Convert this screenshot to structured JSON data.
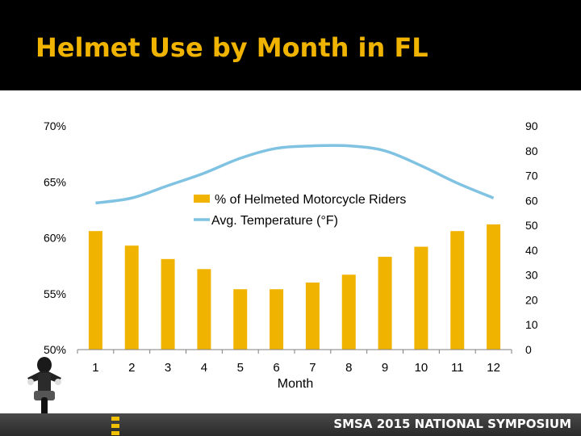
{
  "header": {
    "title": "Helmet Use by Month in FL"
  },
  "footer": {
    "text": "SMSA 2015 NATIONAL SYMPOSIUM"
  },
  "colors": {
    "bar": "#f0b400",
    "line": "#7fc2e2",
    "header_bg": "#000000",
    "title": "#f0b400"
  },
  "chart_data": {
    "type": "bar",
    "title": "",
    "xlabel": "Month",
    "categories": [
      "1",
      "2",
      "3",
      "4",
      "5",
      "6",
      "7",
      "8",
      "9",
      "10",
      "11",
      "12"
    ],
    "series": [
      {
        "name": "% of Helmeted Motorcycle Riders",
        "type": "bar",
        "axis": "left",
        "values": [
          60.6,
          59.3,
          58.1,
          57.2,
          55.4,
          55.4,
          56.0,
          56.7,
          58.3,
          59.2,
          60.6,
          61.2
        ]
      },
      {
        "name": "Avg. Temperature (°F)",
        "type": "line",
        "axis": "right",
        "values": [
          59,
          61,
          66,
          71,
          77,
          81,
          82,
          82,
          80,
          74,
          67,
          61
        ]
      }
    ],
    "y_left": {
      "ylim": [
        50,
        70
      ],
      "ticks": [
        "50%",
        "55%",
        "60%",
        "65%",
        "70%"
      ]
    },
    "y_right": {
      "ylim": [
        0,
        90
      ],
      "ticks": [
        "0",
        "10",
        "20",
        "30",
        "40",
        "50",
        "60",
        "70",
        "80",
        "90"
      ]
    },
    "grid": false,
    "legend_position": "center"
  }
}
